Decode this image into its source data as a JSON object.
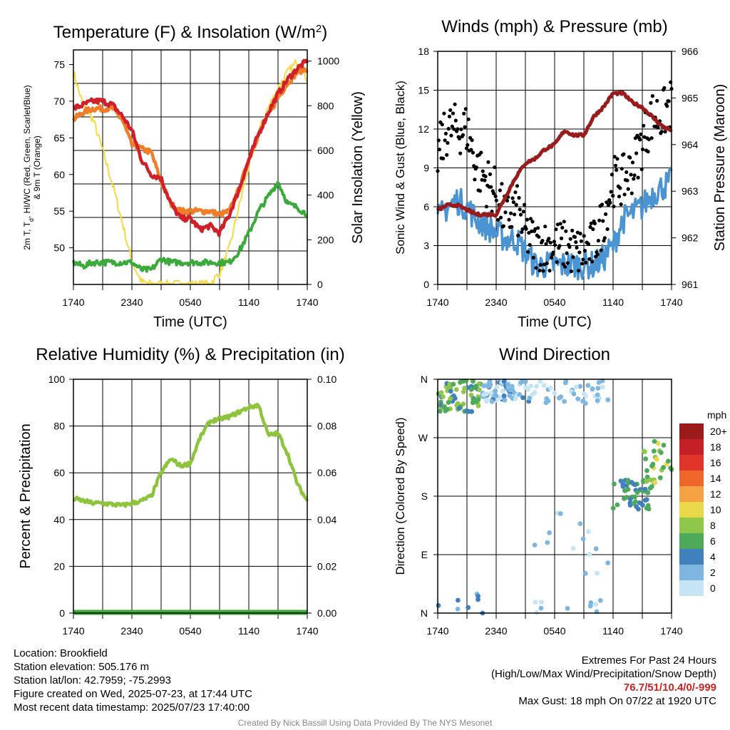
{
  "colors": {
    "temperature": "#d0202a",
    "dewpoint": "#3aaa3a",
    "heat_index": "#f07e28",
    "nine_m_temp": "#f07e28",
    "insolation": "#f5dc50",
    "sonic_wind": "#4a94d4",
    "gust": "#000000",
    "pressure": "#9a1b1b",
    "humidity": "#8cc43c",
    "precipitation": "#3aaa3a"
  },
  "panels": {
    "temp": {
      "title": "Temperature (F) & Insolation (W/m",
      "title_sup": "2",
      "title_end": ")",
      "ylabel_left_1": "2m T, T",
      "ylabel_left_sub": "d",
      "ylabel_left_2": ", HI/WC (Red, Green, Scarlet/Blue)",
      "ylabel_left_3": "& 9m T (Orange)",
      "ylabel_right": "Solar Insolation (Yellow)",
      "xlabel": "Time (UTC)"
    },
    "wind": {
      "title": "Winds (mph) & Pressure (mb)",
      "ylabel_left": "Sonic Wind & Gust (Blue, Black)",
      "ylabel_right": "Station Pressure (Maroon)",
      "xlabel": "Time (UTC)"
    },
    "rh": {
      "title": "Relative Humidity (%) & Precipitation (in)",
      "ylabel_left": "Percent & Precipitation"
    },
    "dir": {
      "title": "Wind Direction",
      "ylabel_left": "Direction (Colored By Speed)",
      "legend_title": "mph"
    }
  },
  "chart_data": [
    {
      "type": "line",
      "title": "Temperature (F) & Insolation (W/m2)",
      "xlabel": "Time (UTC)",
      "x_ticks": [
        "1740",
        "2340",
        "0540",
        "1140",
        "1740"
      ],
      "x": [
        0,
        1,
        2,
        3,
        4,
        5,
        6,
        7,
        8,
        9,
        10,
        11,
        12,
        13,
        14,
        15,
        16,
        17,
        18,
        19,
        20,
        21,
        22,
        23,
        24
      ],
      "ylim": [
        45,
        77
      ],
      "yticks": [
        50,
        55,
        60,
        65,
        70,
        75
      ],
      "ylim_right": [
        0,
        1050
      ],
      "yticks_right": [
        0,
        200,
        400,
        600,
        800,
        1000
      ],
      "series": [
        {
          "name": "2m T (Red)",
          "values": [
            69,
            69.5,
            70,
            70,
            69.5,
            68,
            66,
            62,
            60,
            59.5,
            56,
            54,
            54,
            52.5,
            53,
            52,
            54.5,
            58,
            62,
            65.5,
            68.5,
            71,
            73,
            74.5,
            75.5
          ]
        },
        {
          "name": "9m T (Orange)",
          "values": [
            67.5,
            68.5,
            69,
            69,
            69,
            67.5,
            64,
            63.5,
            63,
            59,
            56,
            55,
            55,
            55,
            55,
            54.5,
            55,
            58,
            62,
            65.5,
            68,
            70.5,
            72.5,
            74,
            74.5
          ]
        },
        {
          "name": "Td (Green)",
          "values": [
            48,
            47.5,
            48,
            48,
            48,
            48,
            48,
            47,
            47,
            48.5,
            48,
            48,
            48,
            48,
            48,
            48,
            48,
            49.5,
            52,
            55,
            57,
            59,
            56,
            55.5,
            54.5
          ]
        },
        {
          "name": "Solar Insolation (Yellow)",
          "axis": "right",
          "values": [
            950,
            800,
            740,
            600,
            450,
            280,
            100,
            10,
            0,
            0,
            0,
            0,
            0,
            0,
            0,
            50,
            160,
            350,
            530,
            680,
            790,
            880,
            950,
            1000,
            920
          ]
        }
      ]
    },
    {
      "type": "line",
      "title": "Winds (mph) & Pressure (mb)",
      "xlabel": "Time (UTC)",
      "x_ticks": [
        "1740",
        "2340",
        "0540",
        "1140",
        "1740"
      ],
      "x": [
        0,
        1,
        2,
        3,
        4,
        5,
        6,
        7,
        8,
        9,
        10,
        11,
        12,
        13,
        14,
        15,
        16,
        17,
        18,
        19,
        20,
        21,
        22,
        23,
        24
      ],
      "ylim": [
        0,
        18
      ],
      "yticks": [
        0,
        3,
        6,
        9,
        12,
        15,
        18
      ],
      "ylim_right": [
        961,
        966
      ],
      "yticks_right": [
        961,
        962,
        963,
        964,
        965,
        966
      ],
      "series": [
        {
          "name": "Sonic Wind (Blue)",
          "values": [
            5,
            6,
            6.5,
            6,
            5,
            4.5,
            4,
            3.5,
            3.5,
            2.5,
            1.5,
            1.5,
            1.5,
            1.5,
            1.5,
            1.5,
            1.5,
            2,
            3,
            5,
            5.5,
            6,
            7,
            7.5,
            8
          ]
        },
        {
          "name": "Gust (Black)",
          "values": [
            10,
            12,
            12,
            12,
            9,
            8,
            7,
            5,
            6,
            4,
            3,
            3,
            3,
            3,
            2.5,
            2.5,
            3,
            5,
            8,
            8,
            9,
            11,
            13,
            13,
            14
          ]
        },
        {
          "name": "Station Pressure (Maroon)",
          "axis": "right",
          "values": [
            962.6,
            962.7,
            962.7,
            962.6,
            962.5,
            962.5,
            962.5,
            962.9,
            963.3,
            963.6,
            963.7,
            963.9,
            964.0,
            964.3,
            964.2,
            964.2,
            964.6,
            964.8,
            965.1,
            965.1,
            964.9,
            964.8,
            964.6,
            964.4,
            964.3
          ]
        }
      ]
    },
    {
      "type": "line",
      "title": "Relative Humidity (%) & Precipitation (in)",
      "x_ticks": [
        "1740",
        "2340",
        "0540",
        "1140",
        "1740"
      ],
      "x": [
        0,
        1,
        2,
        3,
        4,
        5,
        6,
        7,
        8,
        9,
        10,
        11,
        12,
        13,
        14,
        15,
        16,
        17,
        18,
        19,
        20,
        21,
        22,
        23,
        24
      ],
      "ylim": [
        0,
        100
      ],
      "yticks": [
        0,
        20,
        40,
        60,
        80,
        100
      ],
      "ylim_right": [
        0,
        0.1
      ],
      "yticks_right": [
        "0.00",
        "0.02",
        "0.04",
        "0.06",
        "0.08",
        "0.10"
      ],
      "series": [
        {
          "name": "Relative Humidity",
          "values": [
            49,
            48,
            47,
            47,
            46.5,
            46,
            47,
            48,
            50,
            60,
            66,
            63,
            64,
            75,
            82,
            83,
            84,
            86,
            88,
            89,
            76,
            77,
            68,
            55,
            48
          ]
        },
        {
          "name": "Precipitation",
          "axis": "right",
          "values": [
            0,
            0,
            0,
            0,
            0,
            0,
            0,
            0,
            0,
            0,
            0,
            0,
            0,
            0,
            0,
            0,
            0,
            0,
            0,
            0,
            0,
            0,
            0,
            0,
            0
          ]
        }
      ]
    },
    {
      "type": "scatter",
      "title": "Wind Direction",
      "x_ticks": [
        "1740",
        "2340",
        "0540",
        "1140",
        "1740"
      ],
      "y_ticks": [
        "N",
        "E",
        "S",
        "W",
        "N"
      ],
      "ylim_degrees": [
        0,
        360
      ],
      "legend_title": "mph",
      "legend_labels": [
        "20+",
        "18",
        "16",
        "14",
        "12",
        "10",
        "8",
        "6",
        "4",
        "2",
        "0"
      ],
      "legend_colors": [
        "#9b1b1b",
        "#c42027",
        "#e0362a",
        "#f0672c",
        "#f5a245",
        "#e9d84a",
        "#8fc74a",
        "#4caa5a",
        "#3f80bd",
        "#7eb6e2",
        "#c5e4f4"
      ]
    }
  ],
  "footer": {
    "location": "Location: Brookfield",
    "elevation": "Station elevation: 505.176 m",
    "latlon": "Station lat/lon: 42.7959; -75.2993",
    "created": "Figure created on Wed, 2025-07-23, at 17:44 UTC",
    "recent": "Most recent data timestamp: 2025/07/23 17:40:00",
    "extremes_title": "Extremes For Past 24 Hours",
    "extremes_sub": "(High/Low/Max Wind/Precipitation/Snow Depth)",
    "extremes_values": "76.7/51/10.4/0/-999",
    "max_gust": "Max Gust: 18 mph On 07/22 at 1920 UTC",
    "credit": "Created By Nick Bassill Using Data Provided By The NYS Mesonet"
  }
}
